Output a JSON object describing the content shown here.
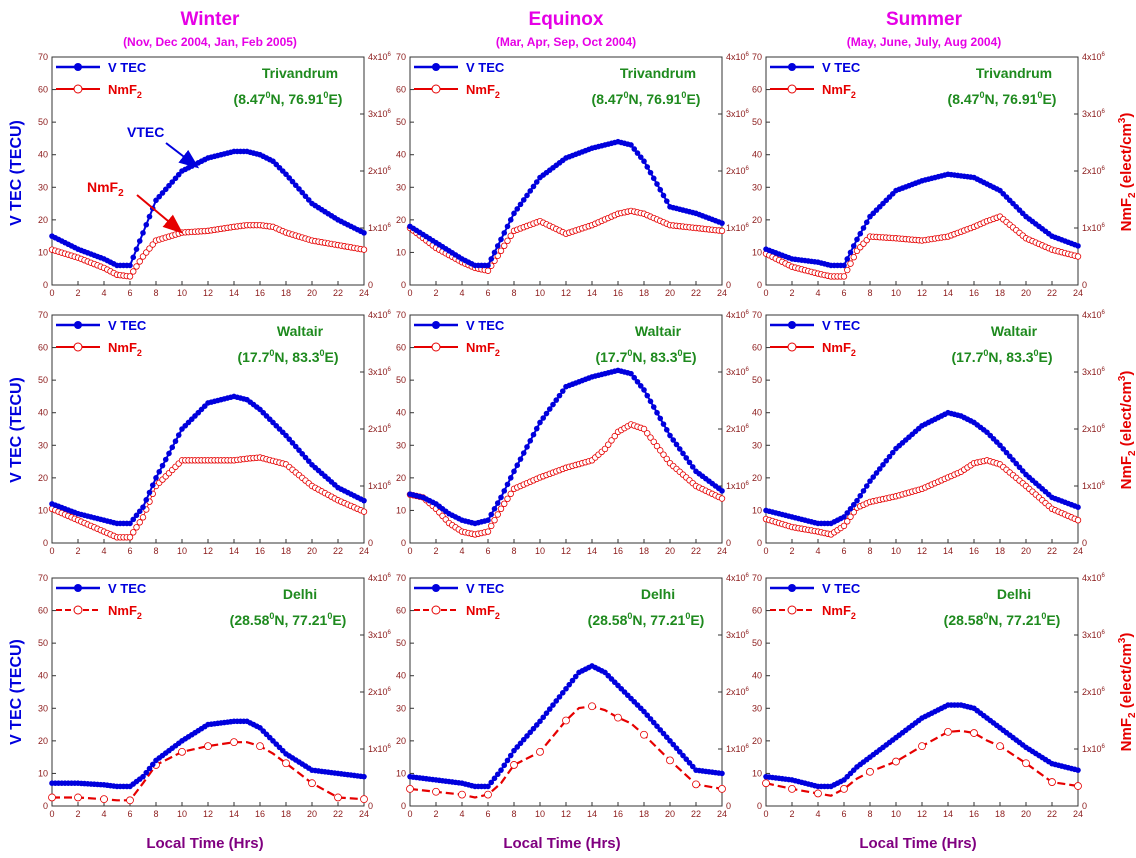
{
  "figure": {
    "columns": [
      {
        "title": "Winter",
        "subtitle": "(Nov, Dec 2004, Jan, Feb 2005)"
      },
      {
        "title": "Equinox",
        "subtitle": "(Mar, Apr, Sep, Oct 2004)"
      },
      {
        "title": "Summer",
        "subtitle": "(May, June, July, Aug 2004)"
      }
    ],
    "xlabel": "Local Time (Hrs)",
    "ylabel_left": "V TEC  (TECU)",
    "ylabel_right": "NmF2 (elect/cm3)",
    "legend": {
      "vtec": "V TEC",
      "nmf2": "NmF2"
    },
    "annotations": {
      "vtec": "VTEC",
      "nmf2": "NmF2"
    },
    "colors": {
      "vtec": "#0000dd",
      "nmf2": "#e60000",
      "station": "#1e8a1e",
      "title": "#e600e6",
      "axis": "#8b1a1a",
      "xlabel": "#800080"
    }
  },
  "chart_data": [
    {
      "type": "line",
      "row": 0,
      "col": 0,
      "station": "Trivandrum",
      "coords": "(8.47⁰N, 76.91⁰E)",
      "x": [
        0,
        2,
        4,
        5,
        6,
        7,
        8,
        10,
        12,
        14,
        15,
        16,
        17,
        18,
        20,
        22,
        24
      ],
      "series": [
        {
          "name": "V TEC",
          "axis": "left",
          "values": [
            15,
            11,
            8,
            6,
            6,
            16,
            26,
            35,
            39,
            41,
            41,
            40,
            38,
            34,
            25,
            20,
            16
          ]
        },
        {
          "name": "NmF2",
          "axis": "right",
          "values": [
            0.62,
            0.48,
            0.3,
            0.18,
            0.15,
            0.5,
            0.78,
            0.92,
            0.95,
            1.02,
            1.05,
            1.05,
            1.02,
            0.92,
            0.78,
            0.7,
            0.62
          ]
        }
      ],
      "xlim": [
        0,
        24
      ],
      "ylim": [
        0,
        70
      ],
      "y2lim": [
        0,
        4
      ],
      "yticks": [
        0,
        10,
        20,
        30,
        40,
        50,
        60,
        70
      ],
      "xticks": [
        0,
        2,
        4,
        6,
        8,
        10,
        12,
        14,
        16,
        18,
        20,
        22,
        24
      ],
      "y2ticks": [
        "0",
        "1x10⁶",
        "2x10⁶",
        "3x10⁶",
        "4x10⁶"
      ]
    },
    {
      "type": "line",
      "row": 0,
      "col": 1,
      "station": "Trivandrum",
      "coords": "(8.47⁰N, 76.91⁰E)",
      "x": [
        0,
        2,
        4,
        5,
        6,
        7,
        8,
        10,
        12,
        14,
        16,
        17,
        18,
        20,
        22,
        24
      ],
      "series": [
        {
          "name": "V TEC",
          "axis": "left",
          "values": [
            18,
            13,
            8,
            6,
            6,
            14,
            22,
            33,
            39,
            42,
            44,
            43,
            38,
            24,
            22,
            19
          ]
        },
        {
          "name": "NmF2",
          "axis": "right",
          "values": [
            1.0,
            0.65,
            0.4,
            0.3,
            0.25,
            0.6,
            0.95,
            1.12,
            0.9,
            1.05,
            1.25,
            1.3,
            1.25,
            1.05,
            1.0,
            0.95
          ]
        }
      ],
      "xlim": [
        0,
        24
      ],
      "ylim": [
        0,
        70
      ],
      "y2lim": [
        0,
        4
      ],
      "yticks": [
        0,
        10,
        20,
        30,
        40,
        50,
        60,
        70
      ],
      "xticks": [
        0,
        2,
        4,
        6,
        8,
        10,
        12,
        14,
        16,
        18,
        20,
        22,
        24
      ],
      "y2ticks": [
        "0",
        "1x10⁶",
        "2x10⁶",
        "3x10⁶",
        "4x10⁶"
      ]
    },
    {
      "type": "line",
      "row": 0,
      "col": 2,
      "station": "Trivandrum",
      "coords": "(8.47⁰N, 76.91⁰E)",
      "x": [
        0,
        2,
        4,
        5,
        6,
        7,
        8,
        10,
        12,
        14,
        16,
        17,
        18,
        20,
        22,
        24
      ],
      "series": [
        {
          "name": "V TEC",
          "axis": "left",
          "values": [
            11,
            8,
            7,
            6,
            6,
            14,
            21,
            29,
            32,
            34,
            33,
            31,
            29,
            21,
            15,
            12
          ]
        },
        {
          "name": "NmF2",
          "axis": "right",
          "values": [
            0.55,
            0.32,
            0.2,
            0.15,
            0.15,
            0.6,
            0.85,
            0.82,
            0.78,
            0.85,
            1.02,
            1.12,
            1.2,
            0.82,
            0.62,
            0.5
          ]
        }
      ],
      "xlim": [
        0,
        24
      ],
      "ylim": [
        0,
        70
      ],
      "y2lim": [
        0,
        4
      ],
      "yticks": [
        0,
        10,
        20,
        30,
        40,
        50,
        60,
        70
      ],
      "xticks": [
        0,
        2,
        4,
        6,
        8,
        10,
        12,
        14,
        16,
        18,
        20,
        22,
        24
      ],
      "y2ticks": [
        "0",
        "1x10⁶",
        "2x10⁶",
        "3x10⁶",
        "4x10⁶"
      ]
    },
    {
      "type": "line",
      "row": 1,
      "col": 0,
      "station": "Waltair",
      "coords": "(17.7⁰N, 83.3⁰E)",
      "x": [
        0,
        2,
        4,
        5,
        6,
        7,
        8,
        10,
        12,
        14,
        15,
        16,
        18,
        20,
        22,
        24
      ],
      "series": [
        {
          "name": "V TEC",
          "axis": "left",
          "values": [
            12,
            9,
            7,
            6,
            6,
            11,
            20,
            35,
            43,
            45,
            44,
            41,
            33,
            24,
            17,
            13
          ]
        },
        {
          "name": "NmF2",
          "axis": "right",
          "values": [
            0.6,
            0.4,
            0.2,
            0.1,
            0.1,
            0.45,
            1.0,
            1.45,
            1.45,
            1.45,
            1.48,
            1.5,
            1.38,
            1.0,
            0.75,
            0.55
          ]
        }
      ],
      "xlim": [
        0,
        24
      ],
      "ylim": [
        0,
        70
      ],
      "y2lim": [
        0,
        4
      ],
      "yticks": [
        0,
        10,
        20,
        30,
        40,
        50,
        60,
        70
      ],
      "xticks": [
        0,
        2,
        4,
        6,
        8,
        10,
        12,
        14,
        16,
        18,
        20,
        22,
        24
      ],
      "y2ticks": [
        "0",
        "1x10⁶",
        "2x10⁶",
        "3x10⁶",
        "4x10⁶"
      ]
    },
    {
      "type": "line",
      "row": 1,
      "col": 1,
      "station": "Waltair",
      "coords": "(17.7⁰N, 83.3⁰E)",
      "x": [
        0,
        1,
        2,
        3,
        4,
        5,
        6,
        7,
        8,
        10,
        12,
        14,
        15,
        16,
        17,
        18,
        20,
        22,
        24
      ],
      "series": [
        {
          "name": "V TEC",
          "axis": "left",
          "values": [
            15,
            14,
            12,
            9,
            7,
            6,
            7,
            14,
            22,
            37,
            48,
            51,
            52,
            53,
            52,
            47,
            33,
            22,
            16
          ]
        },
        {
          "name": "NmF2",
          "axis": "right",
          "values": [
            0.85,
            0.8,
            0.6,
            0.35,
            0.2,
            0.15,
            0.2,
            0.6,
            0.95,
            1.15,
            1.32,
            1.45,
            1.65,
            1.95,
            2.08,
            2.0,
            1.4,
            1.0,
            0.78
          ]
        }
      ],
      "xlim": [
        0,
        24
      ],
      "ylim": [
        0,
        70
      ],
      "y2lim": [
        0,
        4
      ],
      "yticks": [
        0,
        10,
        20,
        30,
        40,
        50,
        60,
        70
      ],
      "xticks": [
        0,
        2,
        4,
        6,
        8,
        10,
        12,
        14,
        16,
        18,
        20,
        22,
        24
      ],
      "y2ticks": [
        "0",
        "1x10⁶",
        "2x10⁶",
        "3x10⁶",
        "4x10⁶"
      ]
    },
    {
      "type": "line",
      "row": 1,
      "col": 2,
      "station": "Waltair",
      "coords": "(17.7⁰N, 83.3⁰E)",
      "x": [
        0,
        2,
        4,
        5,
        6,
        7,
        8,
        10,
        12,
        14,
        15,
        16,
        17,
        18,
        20,
        22,
        24
      ],
      "series": [
        {
          "name": "V TEC",
          "axis": "left",
          "values": [
            10,
            8,
            6,
            6,
            8,
            13,
            19,
            29,
            36,
            40,
            39,
            37,
            34,
            30,
            21,
            14,
            11
          ]
        },
        {
          "name": "NmF2",
          "axis": "right",
          "values": [
            0.42,
            0.28,
            0.2,
            0.15,
            0.3,
            0.62,
            0.72,
            0.82,
            0.95,
            1.15,
            1.25,
            1.4,
            1.45,
            1.38,
            1.0,
            0.6,
            0.4
          ]
        }
      ],
      "xlim": [
        0,
        24
      ],
      "ylim": [
        0,
        70
      ],
      "y2lim": [
        0,
        4
      ],
      "yticks": [
        0,
        10,
        20,
        30,
        40,
        50,
        60,
        70
      ],
      "xticks": [
        0,
        2,
        4,
        6,
        8,
        10,
        12,
        14,
        16,
        18,
        20,
        22,
        24
      ],
      "y2ticks": [
        "0",
        "1x10⁶",
        "2x10⁶",
        "3x10⁶",
        "4x10⁶"
      ]
    },
    {
      "type": "line",
      "row": 2,
      "col": 0,
      "station": "Delhi",
      "coords": "(28.58⁰N, 77.21⁰E)",
      "x": [
        0,
        2,
        4,
        5,
        6,
        7,
        8,
        10,
        12,
        14,
        15,
        16,
        17,
        18,
        20,
        22,
        24
      ],
      "series": [
        {
          "name": "V TEC",
          "axis": "left",
          "values": [
            7,
            7,
            6.5,
            6,
            6,
            9,
            14,
            20,
            25,
            26,
            26,
            24,
            20,
            16,
            11,
            10,
            9
          ]
        },
        {
          "name": "NmF2",
          "axis": "right",
          "values": [
            0.15,
            0.15,
            0.12,
            0.1,
            0.1,
            0.4,
            0.72,
            0.95,
            1.05,
            1.12,
            1.12,
            1.05,
            0.92,
            0.75,
            0.4,
            0.15,
            0.12
          ]
        }
      ],
      "xlim": [
        0,
        24
      ],
      "ylim": [
        0,
        70
      ],
      "y2lim": [
        0,
        4
      ],
      "yticks": [
        0,
        10,
        20,
        30,
        40,
        50,
        60,
        70
      ],
      "xticks": [
        0,
        2,
        4,
        6,
        8,
        10,
        12,
        14,
        16,
        18,
        20,
        22,
        24
      ],
      "y2ticks": [
        "0",
        "1x10⁶",
        "2x10⁶",
        "3x10⁶",
        "4x10⁶"
      ]
    },
    {
      "type": "line",
      "row": 2,
      "col": 1,
      "station": "Delhi",
      "coords": "(28.58⁰N, 77.21⁰E)",
      "x": [
        0,
        2,
        4,
        5,
        6,
        7,
        8,
        10,
        12,
        13,
        14,
        15,
        16,
        17,
        18,
        20,
        22,
        24
      ],
      "series": [
        {
          "name": "V TEC",
          "axis": "left",
          "values": [
            9,
            8,
            7,
            6,
            6,
            11,
            17,
            26,
            36,
            41,
            43,
            41,
            37,
            33,
            29,
            20,
            11,
            10
          ]
        },
        {
          "name": "NmF2",
          "axis": "right",
          "values": [
            0.3,
            0.25,
            0.2,
            0.15,
            0.2,
            0.4,
            0.72,
            0.95,
            1.5,
            1.72,
            1.75,
            1.68,
            1.55,
            1.45,
            1.25,
            0.8,
            0.38,
            0.3
          ]
        }
      ],
      "xlim": [
        0,
        24
      ],
      "ylim": [
        0,
        70
      ],
      "y2lim": [
        0,
        4
      ],
      "yticks": [
        0,
        10,
        20,
        30,
        40,
        50,
        60,
        70
      ],
      "xticks": [
        0,
        2,
        4,
        6,
        8,
        10,
        12,
        14,
        16,
        18,
        20,
        22,
        24
      ],
      "y2ticks": [
        "0",
        "1x10⁶",
        "2x10⁶",
        "3x10⁶",
        "4x10⁶"
      ]
    },
    {
      "type": "line",
      "row": 2,
      "col": 2,
      "station": "Delhi",
      "coords": "(28.58⁰N, 77.21⁰E)",
      "x": [
        0,
        2,
        4,
        5,
        6,
        7,
        8,
        10,
        12,
        14,
        15,
        16,
        17,
        18,
        20,
        22,
        24
      ],
      "series": [
        {
          "name": "V TEC",
          "axis": "left",
          "values": [
            9,
            8,
            6,
            6,
            8,
            12,
            15,
            21,
            27,
            31,
            31,
            30,
            27,
            24,
            18,
            13,
            11
          ]
        },
        {
          "name": "NmF2",
          "axis": "right",
          "values": [
            0.4,
            0.3,
            0.22,
            0.18,
            0.3,
            0.48,
            0.6,
            0.78,
            1.05,
            1.3,
            1.32,
            1.28,
            1.15,
            1.05,
            0.75,
            0.42,
            0.35
          ]
        }
      ],
      "xlim": [
        0,
        24
      ],
      "ylim": [
        0,
        70
      ],
      "y2lim": [
        0,
        4
      ],
      "yticks": [
        0,
        10,
        20,
        30,
        40,
        50,
        60,
        70
      ],
      "xticks": [
        0,
        2,
        4,
        6,
        8,
        10,
        12,
        14,
        16,
        18,
        20,
        22,
        24
      ],
      "y2ticks": [
        "0",
        "1x10⁶",
        "2x10⁶",
        "3x10⁶",
        "4x10⁶"
      ]
    }
  ]
}
